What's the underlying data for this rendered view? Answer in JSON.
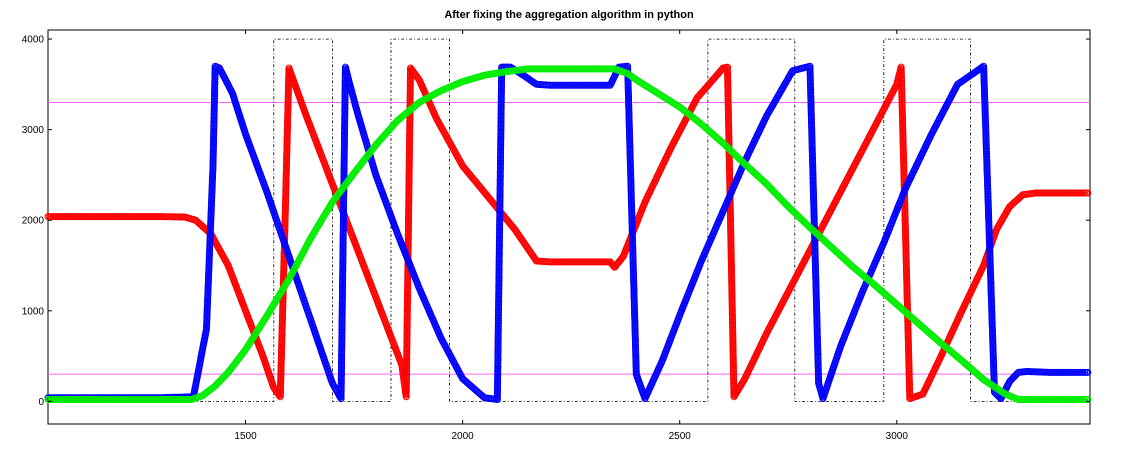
{
  "chart_data": {
    "type": "line",
    "title": "After fixing the aggregation algorithm in python",
    "xlabel": "",
    "ylabel": "",
    "xlim": [
      1045,
      3445
    ],
    "ylim": [
      -250,
      4100
    ],
    "xticks": [
      1500,
      2000,
      2500,
      3000
    ],
    "yticks": [
      0,
      1000,
      2000,
      3000,
      4000
    ],
    "grid": false,
    "threshold_lines": [
      {
        "y": 3300,
        "color": "#ff66ff"
      },
      {
        "y": 300,
        "color": "#ff66ff"
      }
    ],
    "phase_windows": {
      "color": "#000000",
      "style": "dash-dot",
      "low": 0,
      "high": 4000,
      "boundaries": [
        1045,
        1385,
        1565,
        1700,
        1835,
        1970,
        2040,
        2565,
        2765,
        2970,
        3170,
        3445
      ],
      "levels": [
        0,
        0,
        4000,
        0,
        4000,
        0,
        0,
        4000,
        0,
        4000,
        0
      ]
    },
    "series": [
      {
        "color": "#ff0000",
        "x": [
          1045,
          1100,
          1200,
          1300,
          1360,
          1385,
          1420,
          1460,
          1500,
          1540,
          1565,
          1580,
          1590,
          1600,
          1640,
          1700,
          1760,
          1820,
          1860,
          1870,
          1880,
          1900,
          1940,
          2000,
          2060,
          2120,
          2170,
          2200,
          2250,
          2300,
          2340,
          2350,
          2370,
          2420,
          2480,
          2540,
          2600,
          2610,
          2625,
          2650,
          2700,
          2760,
          2820,
          2880,
          2940,
          3000,
          3010,
          3030,
          3060,
          3100,
          3150,
          3200,
          3230,
          3260,
          3290,
          3320,
          3360,
          3400,
          3440
        ],
        "y": [
          2040,
          2040,
          2040,
          2040,
          2035,
          2000,
          1850,
          1500,
          1000,
          500,
          150,
          50,
          1800,
          3680,
          3150,
          2400,
          1650,
          900,
          400,
          50,
          3680,
          3550,
          3120,
          2600,
          2250,
          1900,
          1550,
          1540,
          1540,
          1540,
          1540,
          1480,
          1600,
          2200,
          2800,
          3350,
          3680,
          3690,
          50,
          250,
          750,
          1300,
          1850,
          2400,
          2950,
          3500,
          3690,
          30,
          80,
          480,
          1000,
          1500,
          1900,
          2150,
          2280,
          2300,
          2300,
          2300,
          2300
        ]
      },
      {
        "color": "#0000ff",
        "x": [
          1045,
          1100,
          1200,
          1300,
          1380,
          1410,
          1425,
          1430,
          1440,
          1470,
          1500,
          1550,
          1600,
          1650,
          1700,
          1720,
          1730,
          1740,
          1760,
          1800,
          1850,
          1900,
          1950,
          2000,
          2050,
          2080,
          2090,
          2110,
          2140,
          2170,
          2200,
          2250,
          2300,
          2340,
          2360,
          2380,
          2400,
          2420,
          2460,
          2500,
          2550,
          2600,
          2650,
          2700,
          2760,
          2800,
          2820,
          2830,
          2870,
          2920,
          2970,
          3020,
          3080,
          3140,
          3200,
          3225,
          3240,
          3260,
          3280,
          3300,
          3350,
          3400,
          3440
        ],
        "y": [
          40,
          40,
          40,
          40,
          50,
          800,
          2600,
          3700,
          3680,
          3400,
          2950,
          2300,
          1600,
          900,
          200,
          30,
          3690,
          3500,
          3150,
          2500,
          1850,
          1250,
          700,
          250,
          40,
          20,
          3690,
          3690,
          3600,
          3500,
          3490,
          3490,
          3490,
          3490,
          3690,
          3700,
          300,
          30,
          450,
          950,
          1550,
          2100,
          2650,
          3150,
          3650,
          3700,
          200,
          30,
          600,
          1200,
          1750,
          2350,
          2950,
          3500,
          3700,
          100,
          30,
          220,
          320,
          330,
          320,
          320,
          320
        ]
      },
      {
        "color": "#00ee00",
        "x": [
          1045,
          1100,
          1200,
          1300,
          1375,
          1400,
          1430,
          1460,
          1500,
          1550,
          1600,
          1650,
          1700,
          1750,
          1800,
          1850,
          1900,
          1950,
          2000,
          2050,
          2100,
          2150,
          2200,
          2250,
          2300,
          2350,
          2380,
          2400,
          2450,
          2500,
          2550,
          2600,
          2650,
          2700,
          2750,
          2800,
          2850,
          2900,
          2950,
          3000,
          3050,
          3100,
          3150,
          3200,
          3250,
          3280,
          3300,
          3350,
          3400,
          3440
        ],
        "y": [
          20,
          20,
          20,
          20,
          20,
          60,
          170,
          320,
          570,
          950,
          1350,
          1800,
          2200,
          2520,
          2830,
          3100,
          3300,
          3430,
          3530,
          3600,
          3640,
          3670,
          3670,
          3670,
          3670,
          3670,
          3620,
          3550,
          3400,
          3250,
          3060,
          2850,
          2620,
          2400,
          2150,
          1920,
          1700,
          1480,
          1280,
          1070,
          860,
          650,
          450,
          240,
          80,
          20,
          20,
          20,
          20,
          20
        ]
      }
    ]
  }
}
